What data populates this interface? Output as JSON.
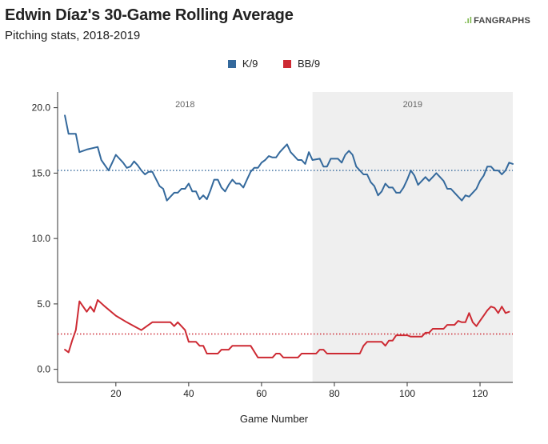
{
  "header": {
    "title": "Edwin Díaz's 30-Game Rolling Average",
    "subtitle": "Pitching stats, 2018-2019",
    "logo_mark": ".ıl",
    "logo_text": "FANGRAPHS"
  },
  "chart_data": {
    "type": "line",
    "title": "Edwin Díaz's 30-Game Rolling Average",
    "subtitle": "Pitching stats, 2018-2019",
    "xlabel": "Game Number",
    "ylabel": "",
    "xlim": [
      4,
      129
    ],
    "ylim": [
      -1,
      21.2
    ],
    "xticks": [
      20,
      40,
      60,
      80,
      100,
      120
    ],
    "yticks": [
      0.0,
      5.0,
      10.0,
      15.0,
      20.0
    ],
    "ytick_labels": [
      "0.0",
      "5.0",
      "10.0",
      "15.0",
      "20.0"
    ],
    "grid": false,
    "legend_position": "top",
    "season_regions": [
      {
        "label": "2018",
        "start": 4,
        "end": 74,
        "shaded": false
      },
      {
        "label": "2019",
        "start": 74,
        "end": 129,
        "shaded": true
      }
    ],
    "reference_lines": [
      {
        "series": "K/9",
        "value": 15.2
      },
      {
        "series": "BB/9",
        "value": 2.7
      }
    ],
    "series": [
      {
        "name": "K/9",
        "color": "#34699c",
        "points": [
          [
            6,
            19.4
          ],
          [
            7,
            18
          ],
          [
            9,
            18
          ],
          [
            10,
            16.6
          ],
          [
            12,
            16.8
          ],
          [
            15,
            17
          ],
          [
            16,
            16
          ],
          [
            18,
            15.2
          ],
          [
            19,
            15.8
          ],
          [
            20,
            16.4
          ],
          [
            22,
            15.8
          ],
          [
            23,
            15.4
          ],
          [
            24,
            15.5
          ],
          [
            25,
            15.9
          ],
          [
            26,
            15.6
          ],
          [
            27,
            15.2
          ],
          [
            28,
            14.9
          ],
          [
            29,
            15.1
          ],
          [
            30,
            15.1
          ],
          [
            32,
            14
          ],
          [
            33,
            13.8
          ],
          [
            34,
            12.9
          ],
          [
            35,
            13.2
          ],
          [
            36,
            13.5
          ],
          [
            37,
            13.5
          ],
          [
            38,
            13.8
          ],
          [
            39,
            13.8
          ],
          [
            40,
            14.2
          ],
          [
            41,
            13.6
          ],
          [
            42,
            13.6
          ],
          [
            43,
            13
          ],
          [
            44,
            13.3
          ],
          [
            45,
            13
          ],
          [
            46,
            13.7
          ],
          [
            47,
            14.5
          ],
          [
            48,
            14.5
          ],
          [
            49,
            13.9
          ],
          [
            50,
            13.6
          ],
          [
            51,
            14.1
          ],
          [
            52,
            14.5
          ],
          [
            53,
            14.2
          ],
          [
            54,
            14.2
          ],
          [
            55,
            13.9
          ],
          [
            56,
            14.5
          ],
          [
            57,
            15.1
          ],
          [
            58,
            15.4
          ],
          [
            59,
            15.4
          ],
          [
            60,
            15.8
          ],
          [
            61,
            16
          ],
          [
            62,
            16.3
          ],
          [
            63,
            16.2
          ],
          [
            64,
            16.2
          ],
          [
            65,
            16.6
          ],
          [
            66,
            16.9
          ],
          [
            67,
            17.2
          ],
          [
            68,
            16.6
          ],
          [
            69,
            16.3
          ],
          [
            70,
            16
          ],
          [
            71,
            16
          ],
          [
            72,
            15.7
          ],
          [
            73,
            16.6
          ],
          [
            74,
            16
          ],
          [
            76,
            16.1
          ],
          [
            77,
            15.5
          ],
          [
            78,
            15.5
          ],
          [
            79,
            16.1
          ],
          [
            80,
            16.1
          ],
          [
            81,
            16.1
          ],
          [
            82,
            15.8
          ],
          [
            83,
            16.4
          ],
          [
            84,
            16.7
          ],
          [
            85,
            16.4
          ],
          [
            86,
            15.5
          ],
          [
            87,
            15.2
          ],
          [
            88,
            14.9
          ],
          [
            89,
            14.9
          ],
          [
            90,
            14.3
          ],
          [
            91,
            14
          ],
          [
            92,
            13.3
          ],
          [
            93,
            13.6
          ],
          [
            94,
            14.2
          ],
          [
            95,
            13.9
          ],
          [
            96,
            13.9
          ],
          [
            97,
            13.5
          ],
          [
            98,
            13.5
          ],
          [
            99,
            13.9
          ],
          [
            100,
            14.5
          ],
          [
            101,
            15.2
          ],
          [
            102,
            14.8
          ],
          [
            103,
            14.1
          ],
          [
            104,
            14.4
          ],
          [
            105,
            14.7
          ],
          [
            106,
            14.4
          ],
          [
            107,
            14.7
          ],
          [
            108,
            15
          ],
          [
            109,
            14.7
          ],
          [
            110,
            14.4
          ],
          [
            111,
            13.8
          ],
          [
            112,
            13.8
          ],
          [
            113,
            13.5
          ],
          [
            114,
            13.2
          ],
          [
            115,
            12.9
          ],
          [
            116,
            13.3
          ],
          [
            117,
            13.2
          ],
          [
            118,
            13.5
          ],
          [
            119,
            13.8
          ],
          [
            120,
            14.4
          ],
          [
            121,
            14.8
          ],
          [
            122,
            15.5
          ],
          [
            123,
            15.5
          ],
          [
            124,
            15.2
          ],
          [
            125,
            15.2
          ],
          [
            126,
            14.9
          ],
          [
            127,
            15.2
          ],
          [
            128,
            15.8
          ],
          [
            129,
            15.7
          ]
        ]
      },
      {
        "name": "BB/9",
        "color": "#cd2a33",
        "points": [
          [
            6,
            1.5
          ],
          [
            7,
            1.3
          ],
          [
            8,
            2.2
          ],
          [
            9,
            3
          ],
          [
            10,
            5.2
          ],
          [
            11,
            4.8
          ],
          [
            12,
            4.4
          ],
          [
            13,
            4.8
          ],
          [
            14,
            4.4
          ],
          [
            15,
            5.3
          ],
          [
            17,
            4.8
          ],
          [
            20,
            4.1
          ],
          [
            23,
            3.6
          ],
          [
            25,
            3.3
          ],
          [
            27,
            3
          ],
          [
            29,
            3.4
          ],
          [
            30,
            3.6
          ],
          [
            33,
            3.6
          ],
          [
            35,
            3.6
          ],
          [
            36,
            3.3
          ],
          [
            37,
            3.6
          ],
          [
            38,
            3.3
          ],
          [
            39,
            3
          ],
          [
            40,
            2.1
          ],
          [
            42,
            2.1
          ],
          [
            43,
            1.8
          ],
          [
            44,
            1.8
          ],
          [
            45,
            1.2
          ],
          [
            48,
            1.2
          ],
          [
            49,
            1.5
          ],
          [
            51,
            1.5
          ],
          [
            52,
            1.8
          ],
          [
            57,
            1.8
          ],
          [
            59,
            0.9
          ],
          [
            63,
            0.9
          ],
          [
            64,
            1.2
          ],
          [
            65,
            1.2
          ],
          [
            66,
            0.9
          ],
          [
            70,
            0.9
          ],
          [
            71,
            1.2
          ],
          [
            74,
            1.2
          ],
          [
            75,
            1.2
          ],
          [
            76,
            1.5
          ],
          [
            77,
            1.5
          ],
          [
            78,
            1.2
          ],
          [
            87,
            1.2
          ],
          [
            88,
            1.8
          ],
          [
            89,
            2.1
          ],
          [
            93,
            2.1
          ],
          [
            94,
            1.8
          ],
          [
            95,
            2.2
          ],
          [
            96,
            2.2
          ],
          [
            97,
            2.6
          ],
          [
            100,
            2.6
          ],
          [
            101,
            2.5
          ],
          [
            104,
            2.5
          ],
          [
            105,
            2.8
          ],
          [
            106,
            2.8
          ],
          [
            107,
            3.1
          ],
          [
            110,
            3.1
          ],
          [
            111,
            3.4
          ],
          [
            113,
            3.4
          ],
          [
            114,
            3.7
          ],
          [
            115,
            3.6
          ],
          [
            116,
            3.6
          ],
          [
            117,
            4.3
          ],
          [
            118,
            3.6
          ],
          [
            119,
            3.3
          ],
          [
            120,
            3.7
          ],
          [
            121,
            4.1
          ],
          [
            122,
            4.5
          ],
          [
            123,
            4.8
          ],
          [
            124,
            4.7
          ],
          [
            125,
            4.3
          ],
          [
            126,
            4.8
          ],
          [
            127,
            4.3
          ],
          [
            128,
            4.4
          ]
        ]
      }
    ]
  }
}
